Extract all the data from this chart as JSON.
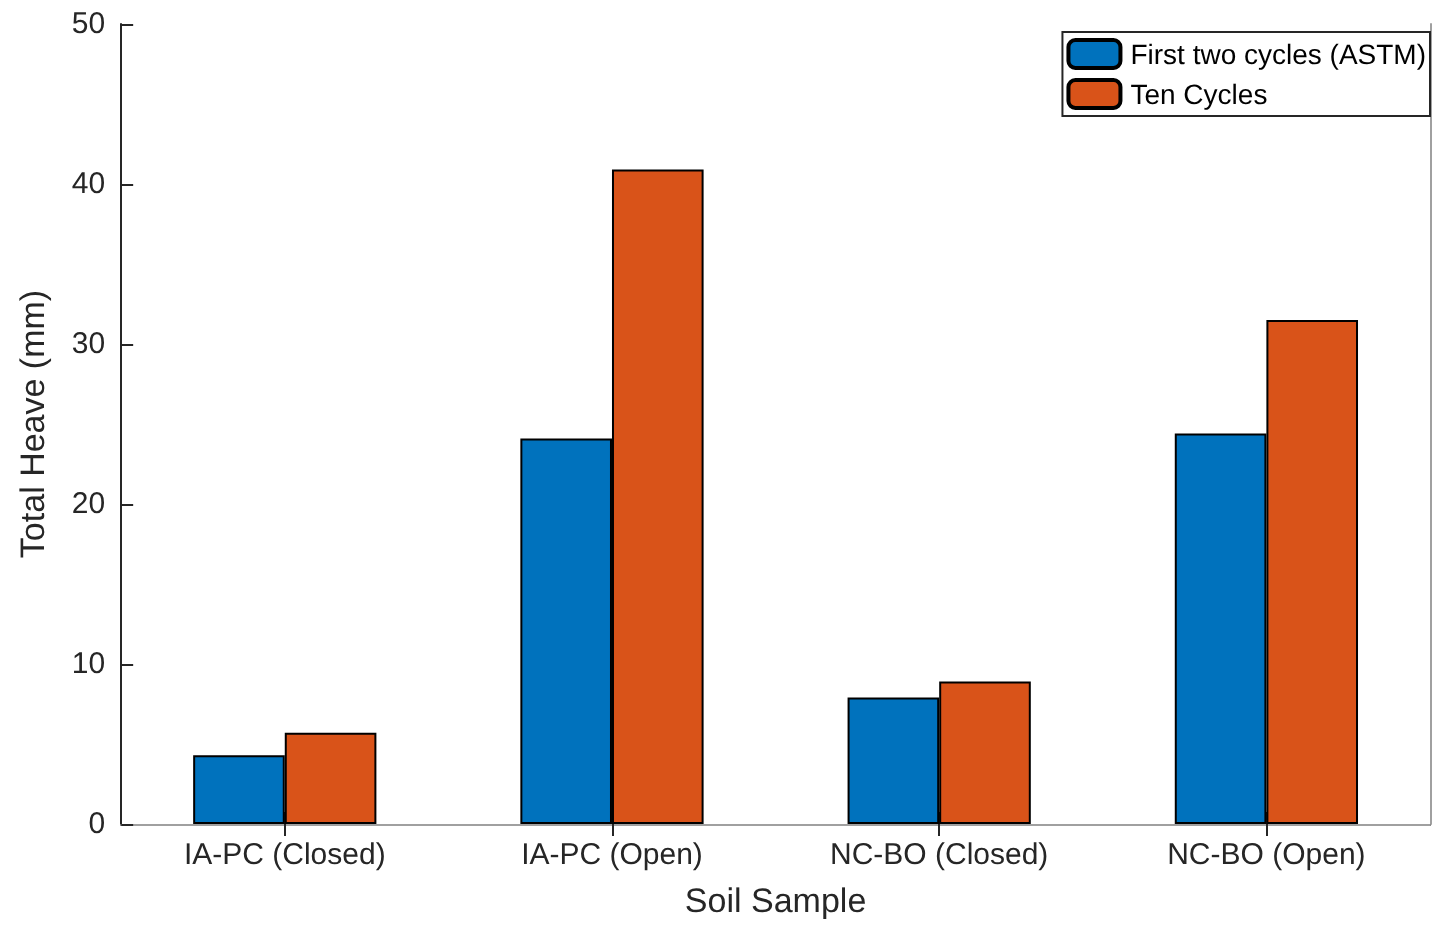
{
  "chart_data": {
    "type": "bar",
    "xlabel": "Soil Sample",
    "ylabel": "Total Heave (mm)",
    "categories": [
      "IA-PC (Closed)",
      "IA-PC (Open)",
      "NC-BO (Closed)",
      "NC-BO (Open)"
    ],
    "series": [
      {
        "name": "First two cycles (ASTM)",
        "color": "#0072bd",
        "values": [
          4.3,
          24.1,
          7.9,
          24.4
        ]
      },
      {
        "name": "Ten Cycles",
        "color": "#d95319",
        "values": [
          5.7,
          40.9,
          8.9,
          31.5
        ]
      }
    ],
    "ylim": [
      0,
      50
    ],
    "yticks": [
      0,
      10,
      20,
      30,
      40,
      50
    ],
    "grid": false,
    "legend": "top right"
  }
}
